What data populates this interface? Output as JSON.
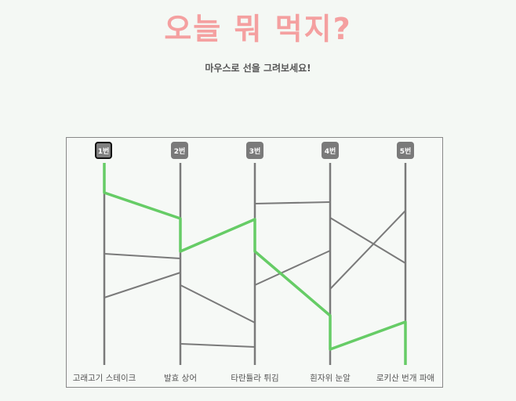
{
  "header": {
    "title": "오늘 뭐 먹지?",
    "subtitle": "마우스로 선을 그려보세요!"
  },
  "players": [
    "1번",
    "2번",
    "3번",
    "4번",
    "5번"
  ],
  "selected_player": 0,
  "destinations": [
    "고래고기 스테이크",
    "발효 상어",
    "타란튤라 튀김",
    "흰자위 눈알",
    "로키산 번개 파애"
  ],
  "colors": {
    "title": "#f4a0a0",
    "line": "#7a7a7a",
    "path": "#66cc66",
    "badge": "#7a7a7a",
    "background": "#f4f8f4"
  }
}
